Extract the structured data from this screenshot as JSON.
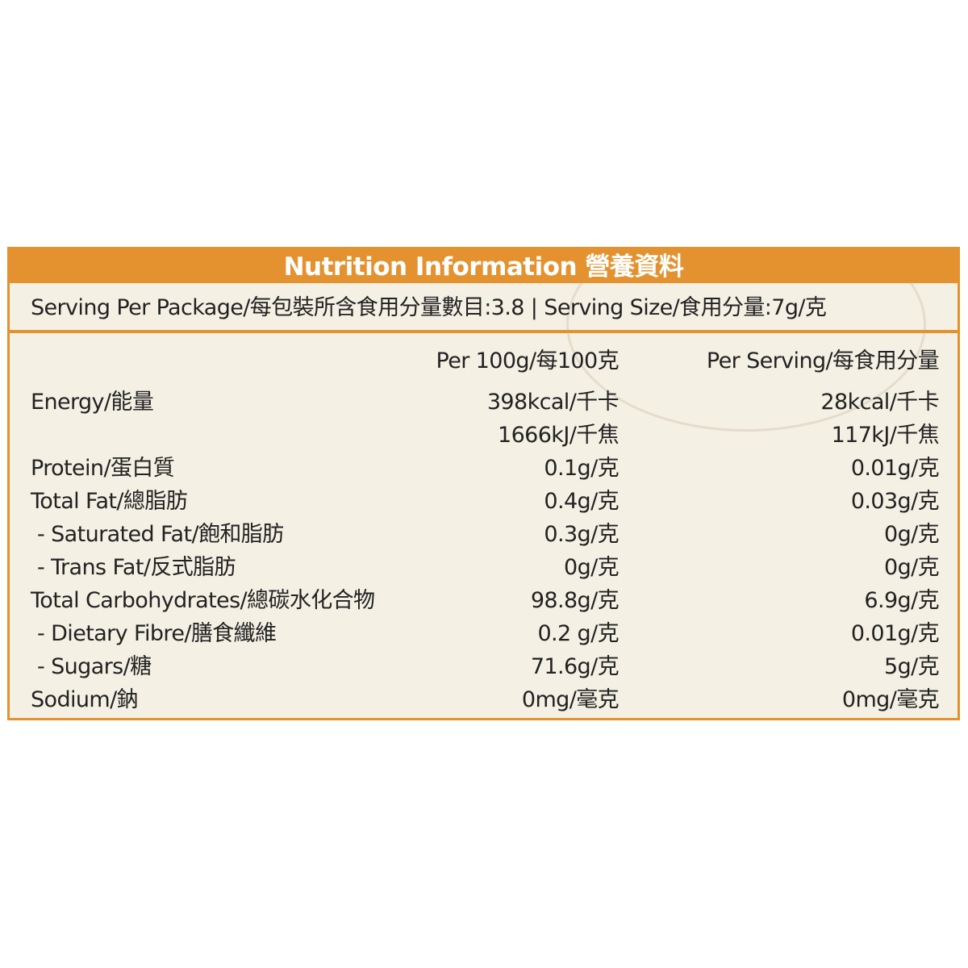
{
  "title": "Nutrition Information 營養資料",
  "serving_line": "Serving Per Package/每包裝所含食用分量數目:3.8 | Serving Size/食用分量:7g/克",
  "columns": {
    "per100": "Per 100g/每100克",
    "per_serving": "Per Serving/每食用分量"
  },
  "rows": [
    {
      "name": "Energy/能量",
      "per100": "398kcal/千卡",
      "per_serving": "28kcal/千卡"
    },
    {
      "name": "",
      "per100": "1666kJ/千焦",
      "per_serving": "117kJ/千焦"
    },
    {
      "name": "Protein/蛋白質",
      "per100": "0.1g/克",
      "per_serving": "0.01g/克"
    },
    {
      "name": "Total Fat/總脂肪",
      "per100": "0.4g/克",
      "per_serving": "0.03g/克"
    },
    {
      "name": " - Saturated Fat/飽和脂肪",
      "per100": "0.3g/克",
      "per_serving": "0g/克"
    },
    {
      "name": " - Trans Fat/反式脂肪",
      "per100": "0g/克",
      "per_serving": "0g/克"
    },
    {
      "name": "Total Carbohydrates/總碳水化合物",
      "per100": "98.8g/克",
      "per_serving": "6.9g/克"
    },
    {
      "name": " - Dietary Fibre/膳食纖維",
      "per100": "0.2 g/克",
      "per_serving": "0.01g/克"
    },
    {
      "name": " - Sugars/糖",
      "per100": "71.6g/克",
      "per_serving": "5g/克"
    },
    {
      "name": "Sodium/鈉",
      "per100": "0mg/毫克",
      "per_serving": "0mg/毫克"
    }
  ],
  "colors": {
    "accent": "#e3922f",
    "background": "#f4f0e4"
  }
}
